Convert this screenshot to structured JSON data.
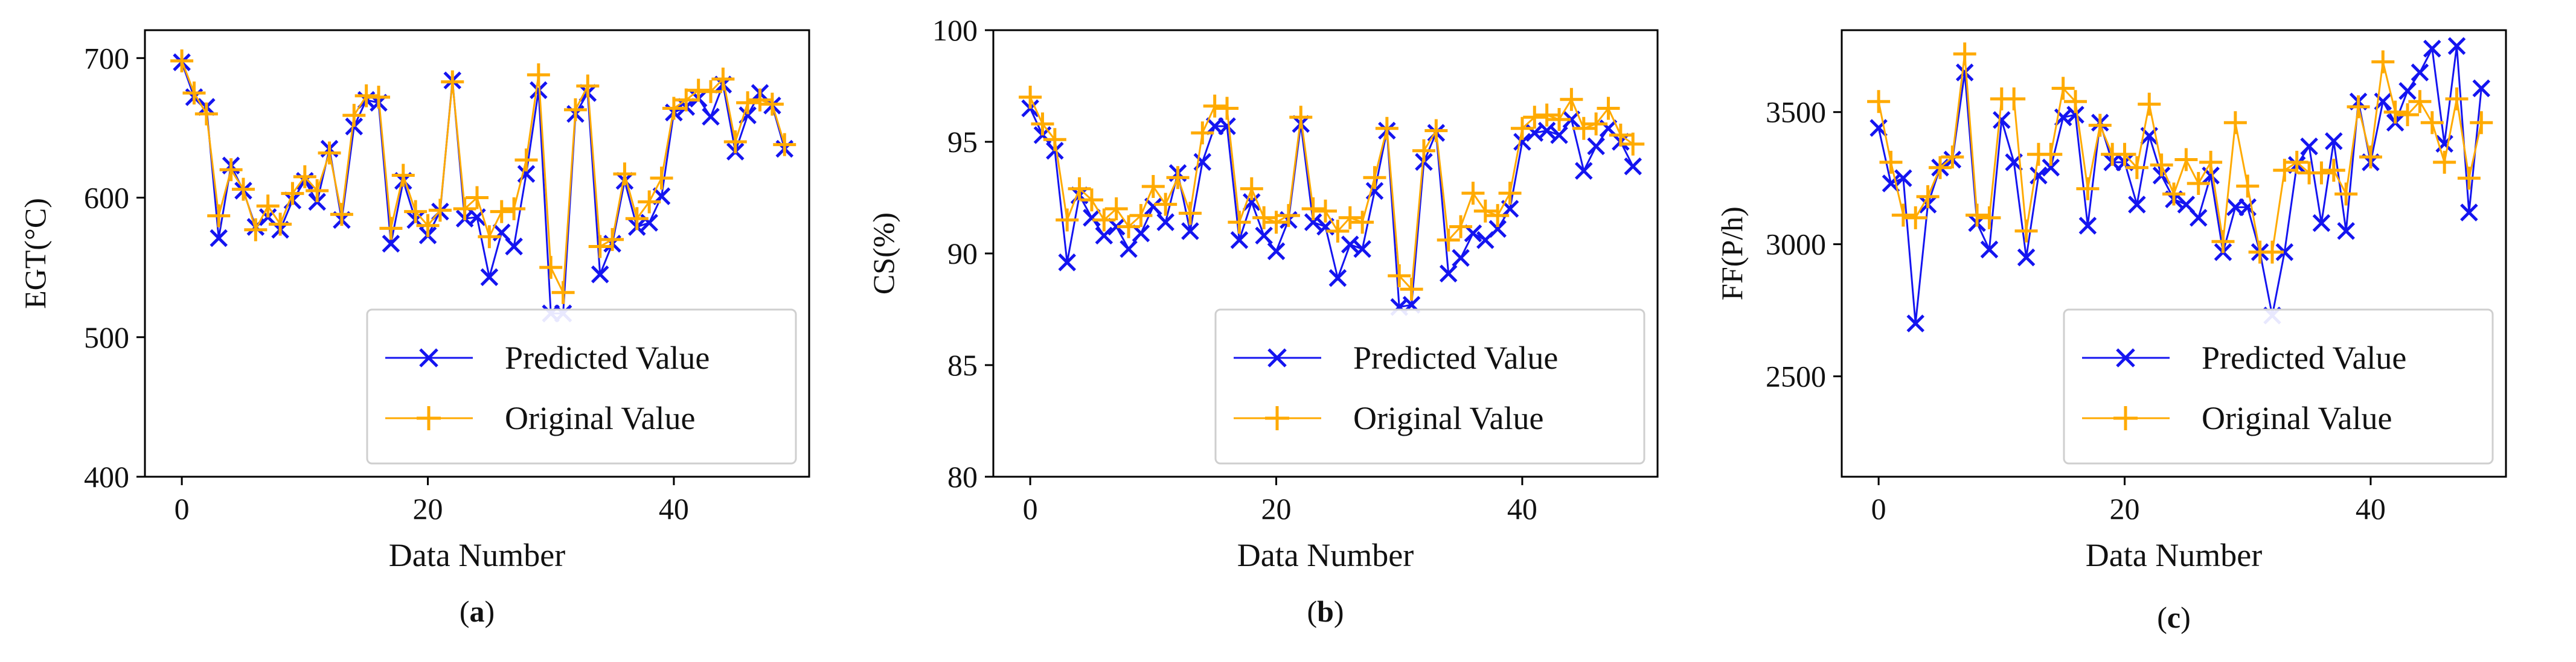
{
  "colors": {
    "predicted": "#1414f0",
    "original": "#ffaa00",
    "axis": "#000000"
  },
  "chart_data": [
    {
      "panel_label": "(a)",
      "panel_letter": "a",
      "type": "line",
      "title": "",
      "xlabel": "Data Number",
      "ylabel": "EGT(°C)",
      "xlim": [
        -3,
        51
      ],
      "ylim": [
        400,
        720
      ],
      "xticks": [
        0,
        20,
        40
      ],
      "yticks": [
        400,
        500,
        600,
        700
      ],
      "legend_position": "lower-right",
      "x": [
        0,
        1,
        2,
        3,
        4,
        5,
        6,
        7,
        8,
        9,
        10,
        11,
        12,
        13,
        14,
        15,
        16,
        17,
        18,
        19,
        20,
        21,
        22,
        23,
        24,
        25,
        26,
        27,
        28,
        29,
        30,
        31,
        32,
        33,
        34,
        35,
        36,
        37,
        38,
        39,
        40,
        41,
        42,
        43,
        44,
        45,
        46,
        47,
        48,
        49
      ],
      "series": [
        {
          "name": "Predicted Value",
          "marker": "x",
          "values": [
            697,
            672,
            665,
            571,
            623,
            605,
            579,
            586,
            577,
            598,
            612,
            597,
            635,
            584,
            651,
            670,
            668,
            567,
            612,
            584,
            573,
            590,
            684,
            585,
            586,
            543,
            575,
            565,
            617,
            677,
            517,
            517,
            660,
            675,
            545,
            567,
            612,
            579,
            582,
            601,
            661,
            665,
            671,
            658,
            681,
            633,
            659,
            675,
            666,
            635
          ]
        },
        {
          "name": "Original Value",
          "marker": "+",
          "values": [
            698,
            675,
            660,
            587,
            620,
            606,
            577,
            594,
            581,
            603,
            615,
            605,
            632,
            588,
            659,
            673,
            672,
            578,
            616,
            590,
            580,
            591,
            683,
            592,
            600,
            572,
            590,
            592,
            627,
            688,
            550,
            532,
            663,
            680,
            565,
            570,
            617,
            585,
            597,
            614,
            664,
            670,
            677,
            676,
            685,
            640,
            668,
            670,
            667,
            638
          ]
        }
      ]
    },
    {
      "panel_label": "(b)",
      "panel_letter": "b",
      "type": "line",
      "title": "",
      "xlabel": "Data Number",
      "ylabel": "CS(%)",
      "xlim": [
        -3,
        51
      ],
      "ylim": [
        80,
        100
      ],
      "xticks": [
        0,
        20,
        40
      ],
      "yticks": [
        80,
        85,
        90,
        95,
        100
      ],
      "legend_position": "lower-right",
      "x": [
        0,
        1,
        2,
        3,
        4,
        5,
        6,
        7,
        8,
        9,
        10,
        11,
        12,
        13,
        14,
        15,
        16,
        17,
        18,
        19,
        20,
        21,
        22,
        23,
        24,
        25,
        26,
        27,
        28,
        29,
        30,
        31,
        32,
        33,
        34,
        35,
        36,
        37,
        38,
        39,
        40,
        41,
        42,
        43,
        44,
        45,
        46,
        47,
        48,
        49
      ],
      "series": [
        {
          "name": "Predicted Value",
          "marker": "x",
          "values": [
            96.5,
            95.3,
            94.6,
            89.6,
            92.6,
            91.6,
            90.8,
            91.2,
            90.2,
            90.9,
            92.1,
            91.4,
            93.6,
            91.0,
            94.1,
            95.7,
            95.7,
            90.6,
            92.3,
            90.8,
            90.1,
            91.5,
            95.8,
            91.4,
            91.2,
            88.9,
            90.4,
            90.2,
            92.8,
            95.5,
            87.6,
            87.7,
            94.1,
            95.4,
            89.1,
            89.8,
            90.9,
            90.6,
            91.1,
            92.0,
            95.0,
            95.4,
            95.5,
            95.3,
            96.0,
            93.7,
            94.8,
            95.6,
            95.0,
            93.9
          ]
        },
        {
          "name": "Original Value",
          "marker": "+",
          "values": [
            97.0,
            95.8,
            95.1,
            91.5,
            92.9,
            92.4,
            91.5,
            92.0,
            91.2,
            91.7,
            93.0,
            92.2,
            93.4,
            91.8,
            95.4,
            96.6,
            96.5,
            91.4,
            92.9,
            91.6,
            91.4,
            91.7,
            96.1,
            92.0,
            91.9,
            91.0,
            91.6,
            91.4,
            93.4,
            95.6,
            89.0,
            88.4,
            94.6,
            95.5,
            90.6,
            91.2,
            92.7,
            91.9,
            91.7,
            92.7,
            95.6,
            96.1,
            96.2,
            96.0,
            96.9,
            95.6,
            95.8,
            96.5,
            95.3,
            94.9
          ]
        }
      ]
    },
    {
      "panel_label": "(c)",
      "panel_letter": "c",
      "type": "line",
      "title": "",
      "xlabel": "Data Number",
      "ylabel": "FF(P/h)",
      "xlim": [
        -3,
        51
      ],
      "ylim": [
        2120,
        3810
      ],
      "xticks": [
        0,
        20,
        40
      ],
      "yticks": [
        2500,
        3000,
        3500
      ],
      "legend_position": "lower-right",
      "x": [
        0,
        1,
        2,
        3,
        4,
        5,
        6,
        7,
        8,
        9,
        10,
        11,
        12,
        13,
        14,
        15,
        16,
        17,
        18,
        19,
        20,
        21,
        22,
        23,
        24,
        25,
        26,
        27,
        28,
        29,
        30,
        31,
        32,
        33,
        34,
        35,
        36,
        37,
        38,
        39,
        40,
        41,
        42,
        43,
        44,
        45,
        46,
        47,
        48,
        49
      ],
      "series": [
        {
          "name": "Predicted Value",
          "marker": "x",
          "values": [
            3440,
            3230,
            3250,
            2700,
            3150,
            3290,
            3320,
            3650,
            3080,
            2980,
            3470,
            3310,
            2950,
            3260,
            3290,
            3480,
            3490,
            3070,
            3460,
            3310,
            3310,
            3150,
            3410,
            3260,
            3170,
            3150,
            3100,
            3260,
            2970,
            3140,
            3140,
            2970,
            2730,
            2970,
            3300,
            3370,
            3080,
            3390,
            3050,
            3540,
            3310,
            3540,
            3460,
            3580,
            3650,
            3740,
            3380,
            3750,
            3120,
            3590
          ]
        },
        {
          "name": "Original Value",
          "marker": "+",
          "values": [
            3540,
            3310,
            3110,
            3100,
            3180,
            3290,
            3330,
            3720,
            3110,
            3100,
            3550,
            3550,
            3050,
            3340,
            3340,
            3590,
            3540,
            3210,
            3450,
            3340,
            3340,
            3290,
            3530,
            3300,
            3190,
            3320,
            3230,
            3310,
            3010,
            3460,
            3220,
            2970,
            2970,
            3280,
            3310,
            3270,
            3270,
            3280,
            3190,
            3520,
            3330,
            3690,
            3500,
            3490,
            3540,
            3460,
            3310,
            3550,
            3250,
            3460
          ]
        }
      ]
    }
  ]
}
